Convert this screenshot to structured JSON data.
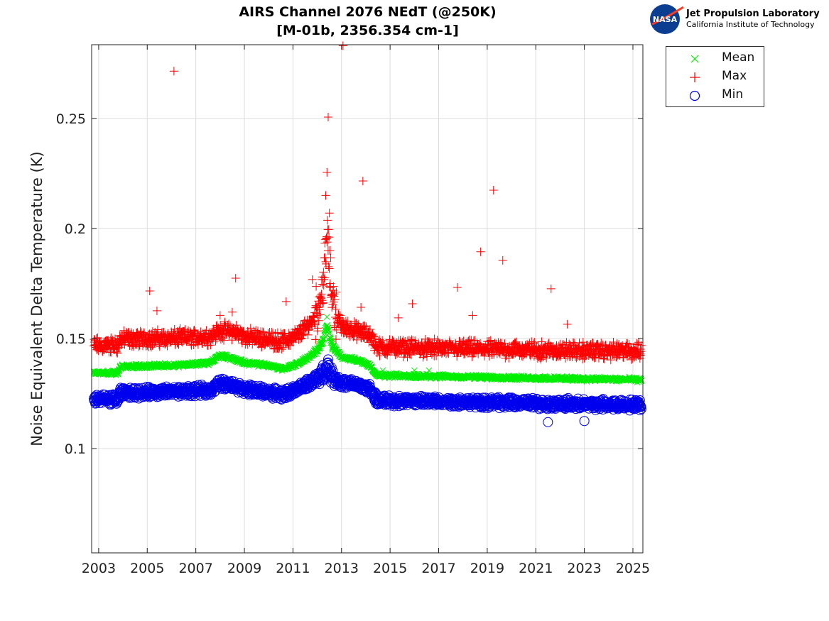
{
  "chart_data": {
    "type": "scatter",
    "title": [
      "AIRS Channel 2076 NEdT (@250K)",
      "[M-01b, 2356.354 cm-1]"
    ],
    "xlabel": "",
    "ylabel": "Noise Equivalent Delta Temperature (K)",
    "xlim": [
      2002.71,
      2025.41
    ],
    "ylim": [
      0.0526,
      0.2835
    ],
    "xticks": [
      2003,
      2005,
      2007,
      2009,
      2011,
      2013,
      2015,
      2017,
      2019,
      2021,
      2023,
      2025
    ],
    "yticks": [
      0.1,
      0.15,
      0.2,
      0.25
    ],
    "ytick_labels": [
      "0.1",
      "0.15",
      "0.2",
      "0.25"
    ],
    "grid": true,
    "legend_placement": "outside-top-right",
    "series": [
      {
        "name": "Mean",
        "marker": "x",
        "color": "#00ee00",
        "spread": 0.0012,
        "trend": [
          [
            2002.8,
            0.1345
          ],
          [
            2003.8,
            0.1345
          ],
          [
            2003.9,
            0.1372
          ],
          [
            2006.0,
            0.1378
          ],
          [
            2007.0,
            0.1385
          ],
          [
            2007.6,
            0.139
          ],
          [
            2008.0,
            0.1425
          ],
          [
            2008.6,
            0.1405
          ],
          [
            2009.0,
            0.139
          ],
          [
            2010.0,
            0.1378
          ],
          [
            2010.6,
            0.1362
          ],
          [
            2011.2,
            0.1385
          ],
          [
            2011.8,
            0.1425
          ],
          [
            2012.2,
            0.148
          ],
          [
            2012.4,
            0.156
          ],
          [
            2012.6,
            0.147
          ],
          [
            2013.0,
            0.1415
          ],
          [
            2013.6,
            0.1405
          ],
          [
            2014.2,
            0.1375
          ],
          [
            2014.45,
            0.1332
          ],
          [
            2017.0,
            0.1328
          ],
          [
            2020.0,
            0.1322
          ],
          [
            2022.0,
            0.1318
          ],
          [
            2025.35,
            0.1313
          ]
        ],
        "outliers": [
          [
            2014.7,
            0.1355
          ],
          [
            2016.0,
            0.1355
          ],
          [
            2016.6,
            0.1355
          ],
          [
            2012.4,
            0.1598
          ]
        ]
      },
      {
        "name": "Max",
        "marker": "+",
        "color": "#ff0000",
        "spread": 0.0045,
        "trend": [
          [
            2002.8,
            0.1468
          ],
          [
            2003.8,
            0.1468
          ],
          [
            2003.9,
            0.1497
          ],
          [
            2006.0,
            0.1502
          ],
          [
            2007.0,
            0.1505
          ],
          [
            2007.6,
            0.151
          ],
          [
            2008.0,
            0.1535
          ],
          [
            2008.6,
            0.153
          ],
          [
            2009.0,
            0.151
          ],
          [
            2010.0,
            0.1495
          ],
          [
            2010.6,
            0.1488
          ],
          [
            2011.2,
            0.1515
          ],
          [
            2011.8,
            0.158
          ],
          [
            2012.1,
            0.166
          ],
          [
            2012.3,
            0.18
          ],
          [
            2012.42,
            0.198
          ],
          [
            2012.55,
            0.175
          ],
          [
            2012.8,
            0.16
          ],
          [
            2013.0,
            0.1555
          ],
          [
            2013.6,
            0.1535
          ],
          [
            2014.2,
            0.1515
          ],
          [
            2014.45,
            0.146
          ],
          [
            2017.0,
            0.1455
          ],
          [
            2020.0,
            0.145
          ],
          [
            2022.0,
            0.1445
          ],
          [
            2025.35,
            0.1442
          ]
        ],
        "outliers": [
          [
            2006.1,
            0.2715
          ],
          [
            2013.06,
            0.283
          ],
          [
            2012.45,
            0.2506
          ],
          [
            2013.88,
            0.2216
          ],
          [
            2019.26,
            0.2174
          ],
          [
            2018.73,
            0.1894
          ],
          [
            2019.64,
            0.1855
          ],
          [
            2008.64,
            0.1774
          ],
          [
            2011.8,
            0.1768
          ],
          [
            2017.77,
            0.1732
          ],
          [
            2021.63,
            0.1726
          ],
          [
            2005.1,
            0.1716
          ],
          [
            2010.72,
            0.1668
          ],
          [
            2015.92,
            0.1658
          ],
          [
            2005.4,
            0.1626
          ],
          [
            2013.8,
            0.1642
          ],
          [
            2015.34,
            0.1594
          ],
          [
            2018.4,
            0.1605
          ],
          [
            2022.3,
            0.1565
          ],
          [
            2008.0,
            0.1605
          ],
          [
            2008.5,
            0.162
          ],
          [
            2012.4,
            0.2255
          ],
          [
            2012.35,
            0.215
          ],
          [
            2012.5,
            0.207
          ]
        ]
      },
      {
        "name": "Min",
        "marker": "o",
        "color": "#0000ee",
        "spread": 0.0028,
        "trend": [
          [
            2002.8,
            0.1223
          ],
          [
            2003.8,
            0.1223
          ],
          [
            2003.9,
            0.1252
          ],
          [
            2006.0,
            0.1258
          ],
          [
            2007.0,
            0.1262
          ],
          [
            2007.6,
            0.1265
          ],
          [
            2008.0,
            0.1297
          ],
          [
            2008.6,
            0.1285
          ],
          [
            2009.0,
            0.127
          ],
          [
            2010.0,
            0.1255
          ],
          [
            2010.6,
            0.1245
          ],
          [
            2011.2,
            0.127
          ],
          [
            2011.8,
            0.1305
          ],
          [
            2012.2,
            0.1335
          ],
          [
            2012.4,
            0.137
          ],
          [
            2012.6,
            0.133
          ],
          [
            2013.0,
            0.1297
          ],
          [
            2013.6,
            0.129
          ],
          [
            2014.2,
            0.127
          ],
          [
            2014.45,
            0.1218
          ],
          [
            2017.0,
            0.1214
          ],
          [
            2020.0,
            0.1208
          ],
          [
            2022.0,
            0.1202
          ],
          [
            2025.35,
            0.1198
          ]
        ],
        "outliers": [
          [
            2012.45,
            0.1405
          ],
          [
            2023.0,
            0.1125
          ],
          [
            2021.5,
            0.112
          ]
        ]
      }
    ]
  },
  "logo": {
    "meatball_text": "NASA",
    "line1": "Jet Propulsion Laboratory",
    "line2": "California Institute of Technology"
  }
}
